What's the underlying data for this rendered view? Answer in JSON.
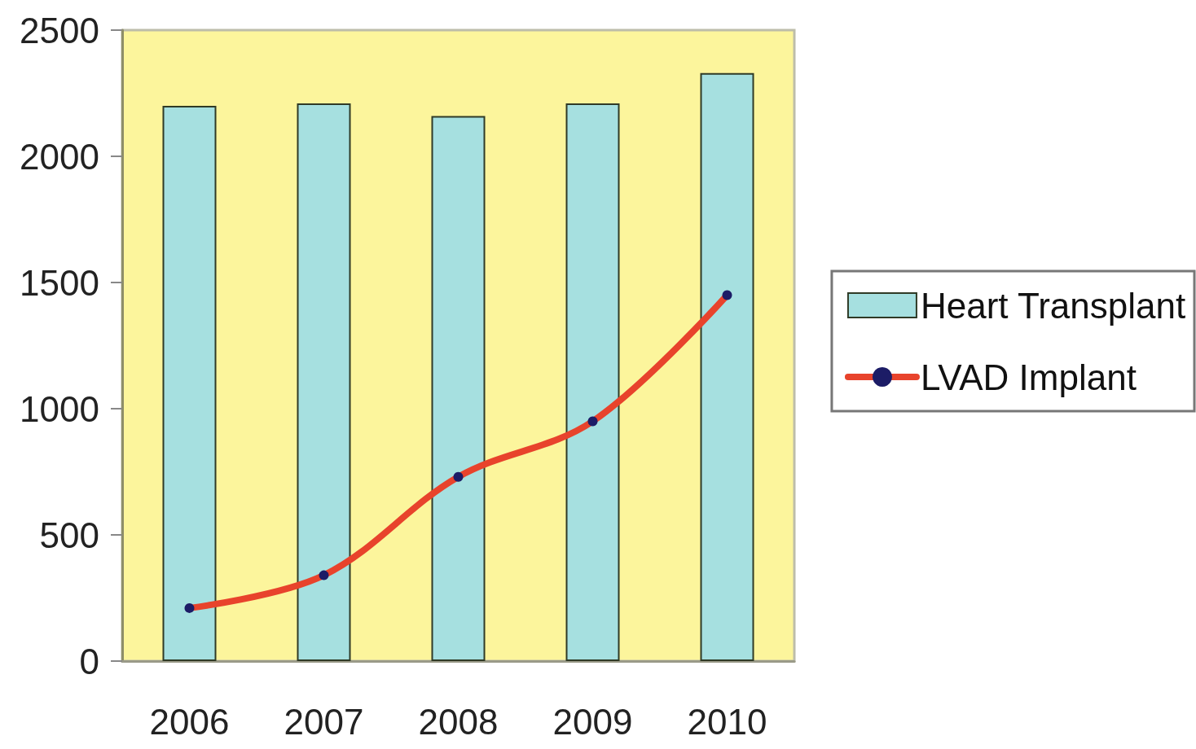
{
  "chart_data": {
    "type": "bar",
    "categories": [
      "2006",
      "2007",
      "2008",
      "2009",
      "2010"
    ],
    "series": [
      {
        "name": "Heart Transplant",
        "color": "#a6e0e0",
        "values": [
          2200,
          2210,
          2160,
          2210,
          2330
        ]
      },
      {
        "name": "LVAD Implant",
        "type": "line",
        "color": "#e8432c",
        "values": [
          210,
          340,
          730,
          950,
          1450
        ]
      }
    ],
    "ylim": [
      0,
      2500
    ],
    "yticks": [
      0,
      500,
      1000,
      1500,
      2000,
      2500
    ],
    "legend": "right",
    "marker": "circle",
    "line_style": "solid"
  }
}
